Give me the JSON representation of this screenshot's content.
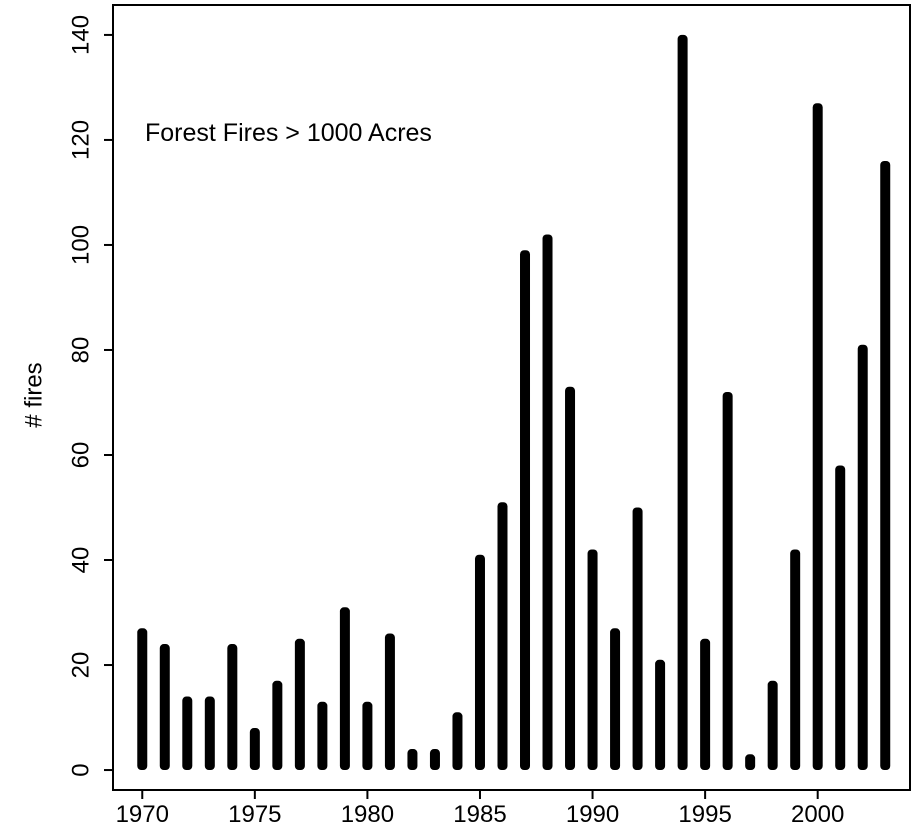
{
  "chart_data": {
    "type": "bar",
    "annotation": "Forest Fires > 1000 Acres",
    "y_label": "# fires",
    "x": [
      1970,
      1971,
      1972,
      1973,
      1974,
      1975,
      1976,
      1977,
      1978,
      1979,
      1980,
      1981,
      1982,
      1983,
      1984,
      1985,
      1986,
      1987,
      1988,
      1989,
      1990,
      1991,
      1992,
      1993,
      1994,
      1995,
      1996,
      1997,
      1998,
      1999,
      2000,
      2001,
      2002,
      2003
    ],
    "values": [
      27,
      24,
      14,
      14,
      24,
      8,
      17,
      25,
      13,
      31,
      13,
      26,
      4,
      4,
      11,
      41,
      51,
      99,
      102,
      73,
      42,
      27,
      50,
      21,
      140,
      25,
      72,
      3,
      17,
      42,
      127,
      58,
      81,
      116
    ],
    "color": "#000000",
    "xlim": [
      1968.7,
      2004.1
    ],
    "ylim": [
      -3.8,
      145.7
    ],
    "xticks": [
      1970,
      1975,
      1980,
      1985,
      1990,
      1995,
      2000
    ],
    "yticks": [
      0,
      20,
      40,
      60,
      80,
      100,
      120,
      140
    ]
  }
}
